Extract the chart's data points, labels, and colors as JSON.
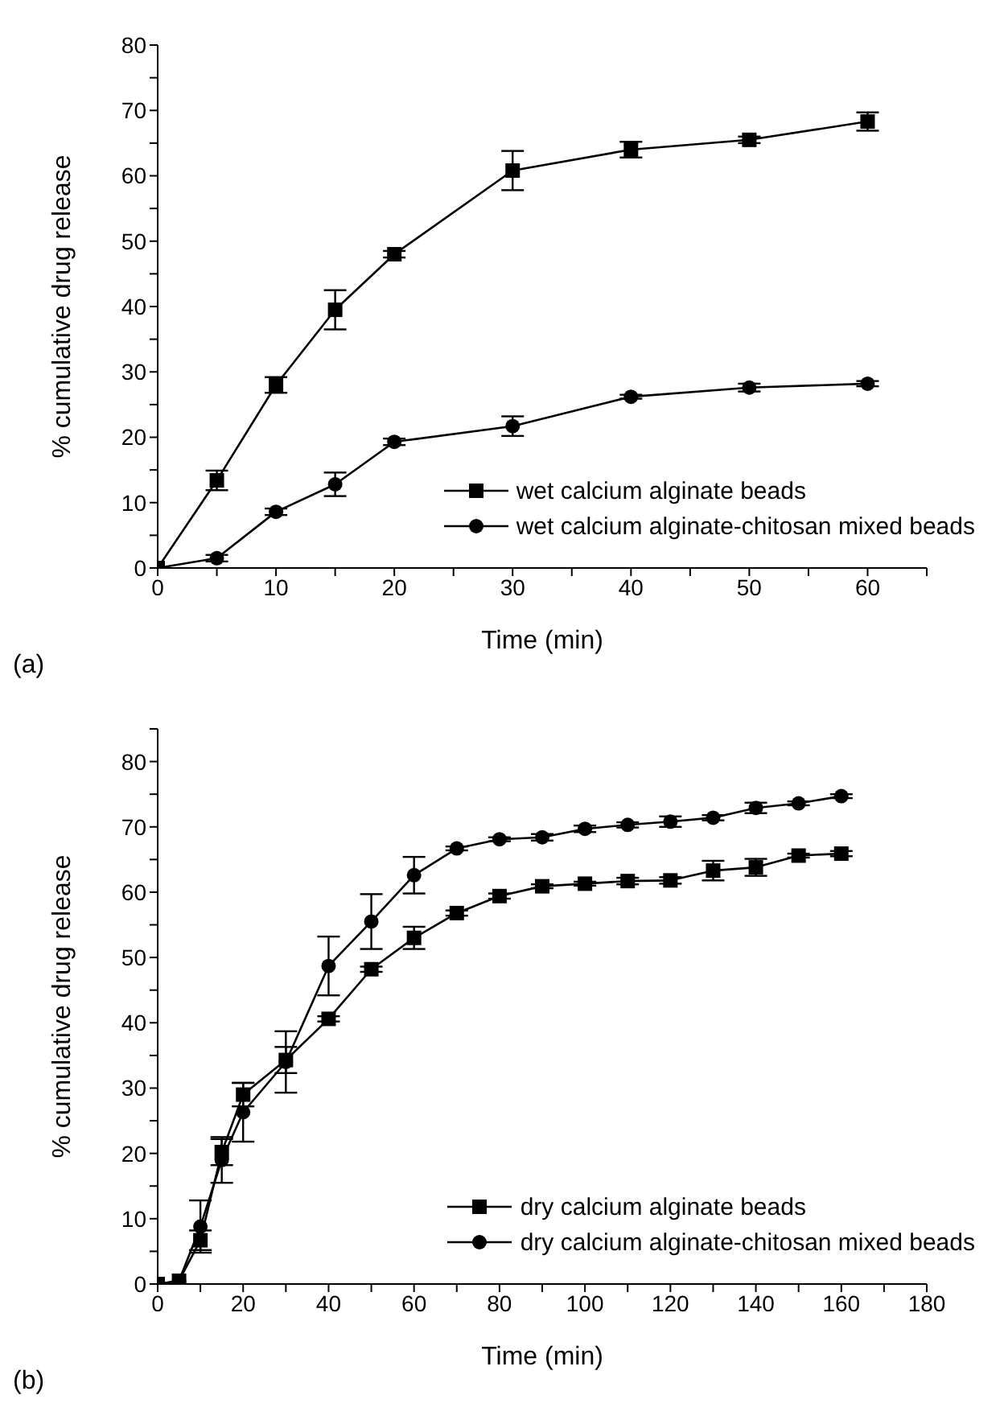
{
  "chart_data": [
    {
      "type": "line",
      "xlabel": "Time (min)",
      "ylabel": "% cumulative drug release",
      "annotations": [
        "(a)"
      ],
      "legend": "bottom right",
      "grid": false,
      "x": [
        0,
        5,
        10,
        15,
        20,
        30,
        40,
        50,
        60
      ],
      "xlim": [
        0,
        65
      ],
      "ylim": [
        0,
        80
      ],
      "xticks": [
        0,
        {
          "value": 5,
          "label": null
        },
        10,
        {
          "value": 15,
          "label": null
        },
        20,
        {
          "value": 25,
          "label": null
        },
        30,
        {
          "value": 35,
          "label": null
        },
        40,
        {
          "value": 45,
          "label": null
        },
        50,
        {
          "value": 55,
          "label": null
        },
        60,
        {
          "value": 65,
          "label": null
        }
      ],
      "yticks": [
        0,
        {
          "value": 5,
          "label": null
        },
        10,
        {
          "value": 15,
          "label": null
        },
        20,
        {
          "value": 25,
          "label": null
        },
        30,
        {
          "value": 35,
          "label": null
        },
        40,
        {
          "value": 45,
          "label": null
        },
        50,
        {
          "value": 55,
          "label": null
        },
        60,
        {
          "value": 65,
          "label": null
        },
        70,
        {
          "value": 75,
          "label": null
        },
        80
      ],
      "series": [
        {
          "name": "wet calcium alginate beads",
          "color": "#000000",
          "marker": "square",
          "values": [
            0,
            13.4,
            28,
            39.5,
            48,
            60.8,
            64,
            65.5,
            68.3
          ],
          "errors": [
            null,
            1.5,
            1.2,
            3,
            0.5,
            3,
            1.2,
            0.5,
            1.4
          ]
        },
        {
          "name": "wet calcium alginate-chitosan mixed beads",
          "color": "#000000",
          "marker": "circle",
          "values": [
            0,
            1.5,
            8.6,
            12.8,
            19.3,
            21.7,
            26.2,
            27.6,
            28.2
          ],
          "errors": [
            null,
            0.5,
            0.5,
            1.8,
            0.5,
            1.5,
            0.3,
            0.6,
            0.4
          ]
        }
      ]
    },
    {
      "type": "line",
      "xlabel": "Time (min)",
      "ylabel": "% cumulative drug release",
      "annotations": [
        "(b)"
      ],
      "legend": "bottom right",
      "grid": false,
      "x": [
        0,
        5,
        10,
        15,
        20,
        30,
        40,
        50,
        60,
        70,
        80,
        90,
        100,
        110,
        120,
        130,
        140,
        150,
        160
      ],
      "xlim": [
        0,
        180
      ],
      "ylim": [
        0,
        85
      ],
      "xticks": [
        0,
        {
          "value": 10,
          "label": null
        },
        20,
        {
          "value": 30,
          "label": null
        },
        40,
        {
          "value": 50,
          "label": null
        },
        60,
        {
          "value": 70,
          "label": null
        },
        80,
        {
          "value": 90,
          "label": null
        },
        100,
        {
          "value": 110,
          "label": null
        },
        120,
        {
          "value": 130,
          "label": null
        },
        140,
        {
          "value": 150,
          "label": null
        },
        160,
        {
          "value": 170,
          "label": null
        },
        180
      ],
      "yticks": [
        0,
        {
          "value": 5,
          "label": null
        },
        10,
        {
          "value": 15,
          "label": null
        },
        20,
        {
          "value": 25,
          "label": null
        },
        30,
        {
          "value": 35,
          "label": null
        },
        40,
        {
          "value": 45,
          "label": null
        },
        50,
        {
          "value": 55,
          "label": null
        },
        60,
        {
          "value": 65,
          "label": null
        },
        70,
        {
          "value": 75,
          "label": null
        },
        80,
        {
          "value": 85,
          "label": null
        }
      ],
      "series": [
        {
          "name": "dry calcium alginate beads",
          "color": "#000000",
          "marker": "square",
          "values": [
            0,
            0.5,
            6.7,
            20.2,
            29,
            34.3,
            40.6,
            48.2,
            53,
            56.8,
            59.4,
            60.9,
            61.3,
            61.7,
            61.8,
            63.3,
            63.8,
            65.6,
            65.9
          ],
          "errors": [
            null,
            null,
            1.5,
            2,
            1.8,
            2,
            0.4,
            0.4,
            1.7,
            0.4,
            0.4,
            0.3,
            0.3,
            0.5,
            0.5,
            1.5,
            1.3,
            0.3,
            0.4
          ]
        },
        {
          "name": "dry calcium alginate-chitosan mixed beads",
          "color": "#000000",
          "marker": "circle",
          "values": [
            0,
            0.5,
            8.8,
            19,
            26.3,
            34,
            48.7,
            55.5,
            62.6,
            66.7,
            68.1,
            68.4,
            69.7,
            70.3,
            70.8,
            71.4,
            72.9,
            73.6,
            74.7
          ],
          "errors": [
            null,
            null,
            4,
            3.5,
            4.5,
            4.7,
            4.5,
            4.2,
            2.8,
            0.3,
            0.3,
            0.5,
            0.5,
            0.4,
            0.8,
            0.4,
            0.8,
            0.3,
            0.3
          ]
        }
      ]
    }
  ]
}
